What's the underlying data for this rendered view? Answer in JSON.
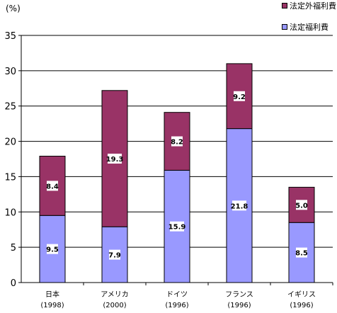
{
  "chart_data": {
    "type": "bar",
    "stacked": true,
    "title": "",
    "xlabel": "",
    "ylabel": "(%)",
    "ylim": [
      0,
      35
    ],
    "yticks": [
      0,
      5,
      10,
      15,
      20,
      25,
      30,
      35
    ],
    "grid": true,
    "legend_position": "top-right",
    "categories": [
      "日本",
      "アメリカ",
      "ドイツ",
      "フランス",
      "イギリス"
    ],
    "category_years": [
      "(1998)",
      "(2000)",
      "(1996)",
      "(1996)",
      "(1996)"
    ],
    "series": [
      {
        "name": "法定福利費",
        "color": "#9999ff",
        "values": [
          9.5,
          7.9,
          15.9,
          21.8,
          8.5
        ]
      },
      {
        "name": "法定外福利費",
        "color": "#993366",
        "values": [
          8.4,
          19.3,
          8.2,
          9.2,
          5.0
        ]
      }
    ],
    "data_labels": [
      [
        "9.5",
        "7.9",
        "15.9",
        "21.8",
        "8.5"
      ],
      [
        "8.4",
        "19.3",
        "8.2",
        "9.2",
        "5.0"
      ]
    ]
  }
}
